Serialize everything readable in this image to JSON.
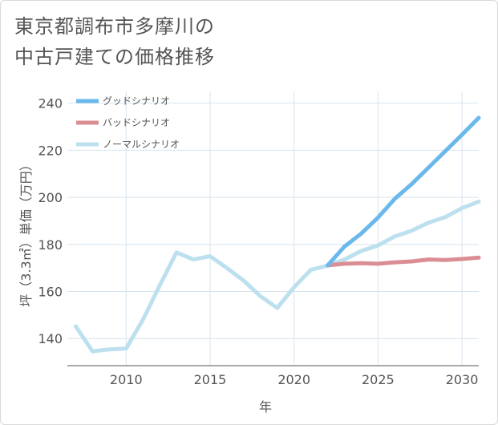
{
  "page": {
    "title_line1": "東京都調布市多摩川の",
    "title_line2": "中古戸建ての価格推移"
  },
  "chart_data": {
    "type": "line",
    "title": "東京都調布市多摩川の中古戸建ての価格推移",
    "xlabel": "年",
    "ylabel": "坪（3.3㎡）単価（万円）",
    "xlim": [
      2006.5,
      2031
    ],
    "ylim": [
      128.5,
      245
    ],
    "x_ticks": [
      2010,
      2015,
      2020,
      2025,
      2030
    ],
    "y_ticks": [
      140,
      160,
      180,
      200,
      220,
      240
    ],
    "grid": true,
    "legend_position": "top-left",
    "series": [
      {
        "name": "グッドシナリオ",
        "color": "#6bb8ec",
        "x": [
          2022,
          2023,
          2024,
          2025,
          2026,
          2027,
          2028,
          2029,
          2030,
          2031
        ],
        "values": [
          171.1,
          179.1,
          184.6,
          191.4,
          199.4,
          205.6,
          212.6,
          219.6,
          226.6,
          233.8
        ]
      },
      {
        "name": "バッドシナリオ",
        "color": "#db8d94",
        "x": [
          2022,
          2023,
          2024,
          2025,
          2026,
          2027,
          2028,
          2029,
          2030,
          2031
        ],
        "values": [
          171.1,
          171.8,
          172.0,
          171.8,
          172.4,
          172.8,
          173.6,
          173.4,
          173.8,
          174.4
        ]
      },
      {
        "name": "ノーマルシナリオ",
        "color": "#bde0ee",
        "x": [
          2007,
          2008,
          2009,
          2010,
          2011,
          2012,
          2013,
          2014,
          2015,
          2016,
          2017,
          2018,
          2019,
          2020,
          2021,
          2022,
          2023,
          2024,
          2025,
          2026,
          2027,
          2028,
          2029,
          2030,
          2031
        ],
        "values": [
          145.2,
          134.6,
          135.4,
          135.8,
          148.0,
          162.6,
          176.6,
          173.6,
          175.0,
          170.0,
          164.6,
          158.0,
          153.0,
          161.8,
          169.2,
          171.0,
          173.6,
          177.2,
          179.6,
          183.4,
          185.8,
          189.2,
          191.6,
          195.4,
          198.2
        ]
      }
    ]
  }
}
